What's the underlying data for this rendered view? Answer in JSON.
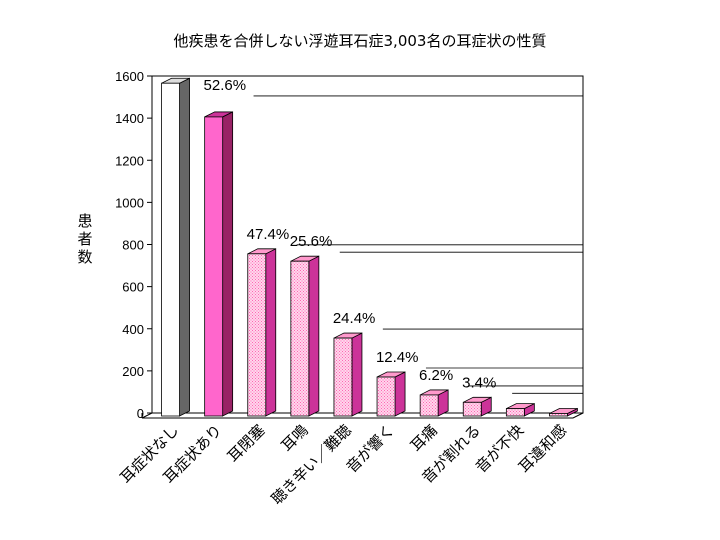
{
  "chart_data": {
    "type": "bar",
    "title": "他疾患を合併しない浮遊耳石症3,003名の耳症状の性質",
    "ylabel": "患者数",
    "xlabel": "",
    "ylim": [
      0,
      1600
    ],
    "yticks": [
      0,
      200,
      400,
      600,
      800,
      1000,
      1200,
      1400,
      1600
    ],
    "categories": [
      "耳症状なし",
      "耳症状あり",
      "耳閉塞",
      "耳鳴",
      "聴き辛い／難聴",
      "音が響く",
      "耳痛",
      "音が割れる",
      "音が不快",
      "耳違和感"
    ],
    "values": [
      1580,
      1420,
      770,
      735,
      370,
      185,
      100,
      65,
      35,
      12
    ],
    "percent_labels": [
      "52.6%",
      "47.4%",
      "25.6%",
      "24.4%",
      "12.4%",
      "6.2%",
      "3.4%"
    ],
    "bar_colors": [
      "#ffffff",
      "#ff66cc",
      "#ffcce6",
      "#ffcce6",
      "#ffcce6",
      "#ffcce6",
      "#ffcce6",
      "#ffcce6",
      "#ffcce6",
      "#ffcce6"
    ],
    "grid": false,
    "legend": "none"
  }
}
